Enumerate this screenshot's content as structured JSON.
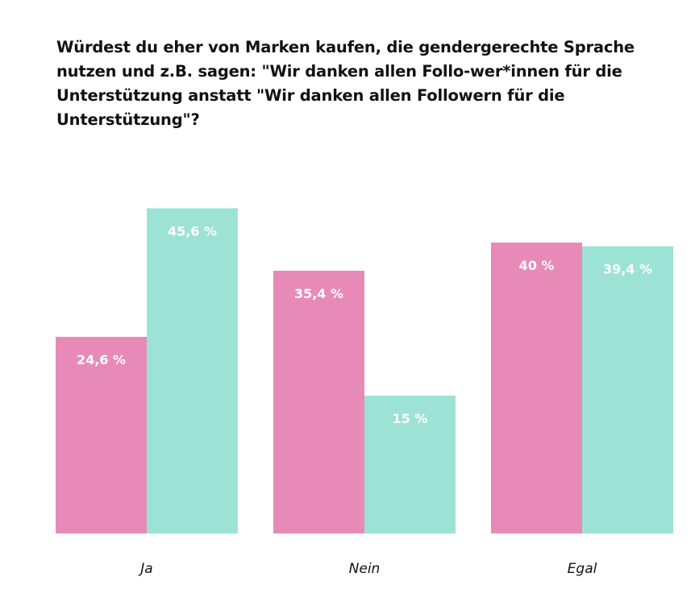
{
  "chart_data": {
    "type": "bar",
    "title": "Würdest du eher von Marken kaufen, die gendergerechte Sprache nutzen und z.B. sagen: \"Wir danken allen Follo-wer*innen für die Unterstützung anstatt \"Wir danken allen Followern für die Unterstützung\"?",
    "categories": [
      "Ja",
      "Nein",
      "Egal"
    ],
    "series": [
      {
        "values": [
          24.6,
          35.4,
          40
        ],
        "labels": [
          "24,6 %",
          "35,4 %",
          "40 %"
        ],
        "color": "#e78ab8"
      },
      {
        "values": [
          45.6,
          15,
          39.4
        ],
        "labels": [
          "45,6 %",
          "15 %",
          "39,4 %"
        ],
        "color": "#9de3d5"
      }
    ],
    "xlabel": "",
    "ylabel": "",
    "grid": false,
    "legend": "none"
  }
}
